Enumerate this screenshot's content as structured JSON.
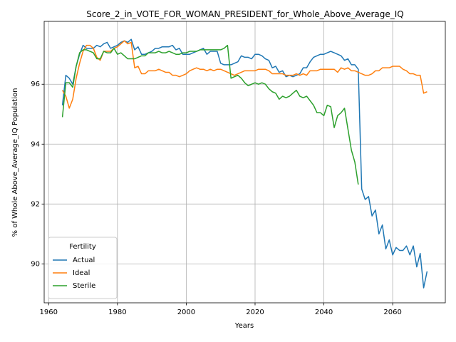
{
  "chart_data": {
    "type": "line",
    "title": "Score_2_in_VOTE_FOR_WOMAN_PRESIDENT_for_Whole_Above_Average_IQ",
    "xlabel": "Years",
    "ylabel": "% of Whole Above_Average_IQ Population",
    "legend_title": "Fertility",
    "legend": "lower left",
    "grid": true,
    "xlim": [
      1958.7,
      2075.3
    ],
    "xticks": [
      1960,
      1980,
      2000,
      2020,
      2040,
      2060
    ],
    "ylim": [
      88.7,
      98.1
    ],
    "yticks": [
      90,
      92,
      94,
      96
    ],
    "x": [
      1964,
      1965,
      1966,
      1967,
      1968,
      1969,
      1970,
      1971,
      1972,
      1973,
      1974,
      1975,
      1976,
      1977,
      1978,
      1979,
      1980,
      1981,
      1982,
      1983,
      1984,
      1985,
      1986,
      1987,
      1988,
      1989,
      1990,
      1991,
      1992,
      1993,
      1994,
      1995,
      1996,
      1997,
      1998,
      1999,
      2000,
      2001,
      2002,
      2003,
      2004,
      2005,
      2006,
      2007,
      2008,
      2009,
      2010,
      2011,
      2012,
      2013,
      2014,
      2015,
      2016,
      2017,
      2018,
      2019,
      2020,
      2021,
      2022,
      2023,
      2024,
      2025,
      2026,
      2027,
      2028,
      2029,
      2030,
      2031,
      2032,
      2033,
      2034,
      2035,
      2036,
      2037,
      2038,
      2039,
      2040,
      2041,
      2042,
      2043,
      2044,
      2045,
      2046,
      2047,
      2048,
      2049,
      2050,
      2051,
      2052,
      2053,
      2054,
      2055,
      2056,
      2057,
      2058,
      2059,
      2060,
      2061,
      2062,
      2063,
      2064,
      2065,
      2066,
      2067,
      2068,
      2069,
      2070
    ],
    "series": [
      {
        "name": "Actual",
        "color": "#1f77b4",
        "values": [
          95.3,
          96.3,
          96.2,
          96.0,
          96.6,
          97.0,
          97.3,
          97.2,
          97.2,
          97.2,
          97.3,
          97.25,
          97.35,
          97.4,
          97.2,
          97.25,
          97.3,
          97.4,
          97.45,
          97.4,
          97.5,
          97.15,
          97.25,
          97.0,
          97.0,
          97.05,
          97.1,
          97.2,
          97.2,
          97.25,
          97.25,
          97.25,
          97.3,
          97.15,
          97.2,
          97.0,
          97.0,
          97.0,
          97.05,
          97.1,
          97.15,
          97.2,
          97.0,
          97.1,
          97.1,
          97.1,
          96.7,
          96.65,
          96.65,
          96.65,
          96.7,
          96.75,
          96.95,
          96.9,
          96.9,
          96.85,
          97.0,
          97.0,
          96.95,
          96.85,
          96.8,
          96.55,
          96.6,
          96.4,
          96.45,
          96.25,
          96.3,
          96.25,
          96.3,
          96.35,
          96.55,
          96.55,
          96.75,
          96.9,
          96.95,
          97.0,
          97.0,
          97.05,
          97.1,
          97.05,
          97.0,
          96.95,
          96.8,
          96.85,
          96.65,
          96.65,
          96.5,
          92.5,
          92.15,
          92.25,
          91.6,
          91.8,
          91.0,
          91.3,
          90.5,
          90.8,
          90.3,
          90.55,
          90.45,
          90.45,
          90.6,
          90.3,
          90.6,
          89.9,
          90.35,
          89.2,
          89.75
        ]
      },
      {
        "name": "Ideal",
        "color": "#ff7f0e",
        "values": [
          95.8,
          95.6,
          95.2,
          95.5,
          96.2,
          96.7,
          97.1,
          97.3,
          97.3,
          97.2,
          96.9,
          96.8,
          97.1,
          97.1,
          97.1,
          97.2,
          97.25,
          97.35,
          97.45,
          97.35,
          97.4,
          96.55,
          96.6,
          96.35,
          96.35,
          96.45,
          96.45,
          96.45,
          96.5,
          96.45,
          96.4,
          96.4,
          96.3,
          96.3,
          96.25,
          96.3,
          96.35,
          96.45,
          96.5,
          96.55,
          96.5,
          96.5,
          96.45,
          96.5,
          96.45,
          96.5,
          96.5,
          96.45,
          96.4,
          96.35,
          96.3,
          96.35,
          96.4,
          96.45,
          96.45,
          96.45,
          96.45,
          96.5,
          96.5,
          96.5,
          96.45,
          96.35,
          96.35,
          96.35,
          96.35,
          96.3,
          96.3,
          96.3,
          96.35,
          96.3,
          96.35,
          96.3,
          96.45,
          96.45,
          96.45,
          96.5,
          96.5,
          96.5,
          96.5,
          96.5,
          96.4,
          96.55,
          96.5,
          96.55,
          96.45,
          96.45,
          96.4,
          96.35,
          96.3,
          96.3,
          96.35,
          96.45,
          96.45,
          96.55,
          96.55,
          96.55,
          96.6,
          96.6,
          96.6,
          96.5,
          96.45,
          96.35,
          96.35,
          96.3,
          96.3,
          95.7,
          95.75
        ]
      },
      {
        "name": "Sterile",
        "color": "#2ca02c",
        "values": [
          94.9,
          96.05,
          96.05,
          95.9,
          96.6,
          97.05,
          97.15,
          97.15,
          97.1,
          97.05,
          96.85,
          96.85,
          97.1,
          97.05,
          97.05,
          97.2,
          97.0,
          97.05,
          96.95,
          96.85,
          96.85,
          96.85,
          96.9,
          96.95,
          96.95,
          97.05,
          97.05,
          97.05,
          97.1,
          97.05,
          97.05,
          97.1,
          97.05,
          97.0,
          97.0,
          97.05,
          97.05,
          97.1,
          97.1,
          97.1,
          97.15,
          97.15,
          97.15,
          97.15,
          97.15,
          97.15,
          97.15,
          97.2,
          97.3,
          96.2,
          96.25,
          96.3,
          96.2,
          96.05,
          95.95,
          96.0,
          96.05,
          96.0,
          96.05,
          96.0,
          95.85,
          95.75,
          95.7,
          95.5,
          95.6,
          95.55,
          95.6,
          95.7,
          95.8,
          95.6,
          95.55,
          95.6,
          95.45,
          95.3,
          95.05,
          95.05,
          94.95,
          95.3,
          95.25,
          94.55,
          94.95,
          95.05,
          95.2,
          94.5,
          93.8,
          93.4,
          92.65,
          null,
          null,
          null,
          null,
          null,
          null,
          null,
          null,
          null,
          null,
          null,
          null,
          null,
          null,
          null,
          null,
          null,
          null,
          null,
          null
        ]
      }
    ]
  }
}
